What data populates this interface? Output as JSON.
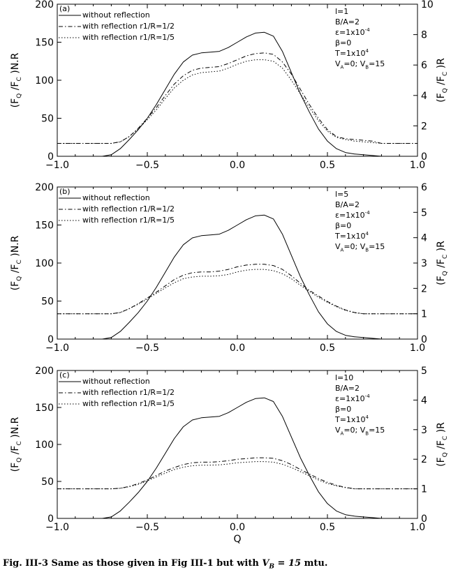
{
  "caption": {
    "prefix": "Fig. III-3 Same as those given in Fig III-1 but with ",
    "math": "V_B = 15",
    "suffix": " mtu."
  },
  "chart_data": [
    {
      "type": "line",
      "panel_label": "(a)",
      "xlabel": "",
      "ylabel_left": "(F_Q /F_C )N.R",
      "ylabel_right": "(F_Q /F_C )R",
      "xlim": [
        -1.0,
        1.0
      ],
      "ylim_left": [
        0,
        200
      ],
      "ylim_right": [
        0,
        10
      ],
      "x_ticks": [
        "-1.0",
        "-0.5",
        "0.0",
        "0.5",
        "1.0"
      ],
      "y_ticks_left": [
        "0",
        "50",
        "100",
        "150",
        "200"
      ],
      "y_ticks_right": [
        "0",
        "2",
        "4",
        "6",
        "8",
        "10"
      ],
      "legend": [
        "without reflection",
        "with reflection r1/R=1/2",
        "with reflection r1/R=1/5"
      ],
      "params": [
        "l=1",
        "B/A=2",
        "ε=1x10^-4",
        "β=0",
        "T=1x10^4",
        "V_A=0; V_B=15"
      ],
      "series": [
        {
          "name": "without reflection",
          "axis": "left",
          "style": "solid",
          "x": [
            -1.0,
            -0.75,
            -0.7,
            -0.65,
            -0.6,
            -0.55,
            -0.5,
            -0.45,
            -0.4,
            -0.35,
            -0.3,
            -0.25,
            -0.2,
            -0.15,
            -0.1,
            -0.05,
            0.0,
            0.05,
            0.1,
            0.15,
            0.2,
            0.25,
            0.3,
            0.35,
            0.4,
            0.45,
            0.5,
            0.55,
            0.6,
            0.65,
            0.7,
            0.75,
            0.8,
            1.0
          ],
          "y": [
            0,
            0,
            2,
            10,
            22,
            35,
            50,
            68,
            88,
            108,
            124,
            133,
            136,
            137,
            138,
            143,
            150,
            157,
            162,
            163,
            158,
            138,
            110,
            82,
            58,
            36,
            20,
            10,
            5,
            3,
            2,
            1,
            0,
            0
          ]
        },
        {
          "name": "with reflection r1/R=1/2",
          "axis": "right",
          "style": "dashdot",
          "x": [
            -1.0,
            -0.7,
            -0.65,
            -0.6,
            -0.55,
            -0.5,
            -0.45,
            -0.4,
            -0.35,
            -0.3,
            -0.25,
            -0.2,
            -0.15,
            -0.1,
            -0.05,
            0.0,
            0.05,
            0.1,
            0.15,
            0.2,
            0.25,
            0.3,
            0.35,
            0.4,
            0.45,
            0.5,
            0.55,
            0.6,
            0.65,
            0.7,
            0.75,
            0.8,
            1.0
          ],
          "y": [
            0.85,
            0.85,
            0.95,
            1.3,
            1.85,
            2.5,
            3.2,
            4.0,
            4.75,
            5.3,
            5.65,
            5.8,
            5.85,
            5.9,
            6.1,
            6.35,
            6.6,
            6.75,
            6.8,
            6.7,
            6.2,
            5.4,
            4.4,
            3.4,
            2.5,
            1.75,
            1.3,
            1.15,
            1.1,
            1.05,
            1.0,
            0.85,
            0.85
          ]
        },
        {
          "name": "with reflection r1/R=1/5",
          "axis": "right",
          "style": "dotted",
          "x": [
            -1.0,
            -0.7,
            -0.65,
            -0.6,
            -0.55,
            -0.5,
            -0.45,
            -0.4,
            -0.35,
            -0.3,
            -0.25,
            -0.2,
            -0.15,
            -0.1,
            -0.05,
            0.0,
            0.05,
            0.1,
            0.15,
            0.2,
            0.25,
            0.3,
            0.35,
            0.4,
            0.45,
            0.5,
            0.55,
            0.6,
            0.65,
            0.7,
            0.75,
            0.8,
            1.0
          ],
          "y": [
            0.85,
            0.85,
            0.95,
            1.3,
            1.8,
            2.4,
            3.05,
            3.8,
            4.5,
            5.0,
            5.35,
            5.5,
            5.55,
            5.6,
            5.8,
            6.05,
            6.25,
            6.35,
            6.35,
            6.25,
            5.8,
            5.0,
            4.1,
            3.2,
            2.35,
            1.65,
            1.25,
            1.1,
            1.0,
            0.95,
            0.9,
            0.85,
            0.85
          ]
        }
      ]
    },
    {
      "type": "line",
      "panel_label": "(b)",
      "xlabel": "",
      "ylabel_left": "(F_Q /F_C )N.R",
      "ylabel_right": "(F_Q /F_C )R",
      "xlim": [
        -1.0,
        1.0
      ],
      "ylim_left": [
        0,
        200
      ],
      "ylim_right": [
        0,
        6
      ],
      "x_ticks": [
        "-1.0",
        "-0.5",
        "0.0",
        "0.5",
        "1.0"
      ],
      "y_ticks_left": [
        "0",
        "50",
        "100",
        "150",
        "200"
      ],
      "y_ticks_right": [
        "0",
        "1",
        "2",
        "3",
        "4",
        "5",
        "6"
      ],
      "legend": [
        "without reflection",
        "with reflection r1/R=1/2",
        "with reflection r1/R=1/5"
      ],
      "params": [
        "l=5",
        "B/A=2",
        "ε=1x10^-4",
        "β=0",
        "T=1x10^4",
        "V_A=0; V_B=15"
      ],
      "series": [
        {
          "name": "without reflection",
          "axis": "left",
          "style": "solid",
          "x": [
            -1.0,
            -0.75,
            -0.7,
            -0.65,
            -0.6,
            -0.55,
            -0.5,
            -0.45,
            -0.4,
            -0.35,
            -0.3,
            -0.25,
            -0.2,
            -0.15,
            -0.1,
            -0.05,
            0.0,
            0.05,
            0.1,
            0.15,
            0.2,
            0.25,
            0.3,
            0.35,
            0.4,
            0.45,
            0.5,
            0.55,
            0.6,
            0.65,
            0.7,
            0.75,
            0.8,
            1.0
          ],
          "y": [
            0,
            0,
            2,
            10,
            22,
            35,
            50,
            68,
            88,
            108,
            124,
            133,
            136,
            137,
            138,
            143,
            150,
            157,
            162,
            163,
            158,
            138,
            110,
            82,
            58,
            36,
            20,
            10,
            5,
            3,
            2,
            1,
            0,
            0
          ]
        },
        {
          "name": "with reflection r1/R=1/2",
          "axis": "right",
          "style": "dashdot",
          "x": [
            -1.0,
            -0.7,
            -0.65,
            -0.6,
            -0.55,
            -0.5,
            -0.45,
            -0.4,
            -0.35,
            -0.3,
            -0.25,
            -0.2,
            -0.15,
            -0.1,
            -0.05,
            0.0,
            0.05,
            0.1,
            0.15,
            0.2,
            0.25,
            0.3,
            0.35,
            0.4,
            0.45,
            0.5,
            0.55,
            0.6,
            0.65,
            0.7,
            0.75,
            0.8,
            1.0
          ],
          "y": [
            1.0,
            1.0,
            1.05,
            1.2,
            1.4,
            1.62,
            1.85,
            2.1,
            2.35,
            2.52,
            2.62,
            2.65,
            2.65,
            2.68,
            2.75,
            2.85,
            2.92,
            2.95,
            2.95,
            2.9,
            2.75,
            2.5,
            2.2,
            1.92,
            1.7,
            1.48,
            1.3,
            1.15,
            1.05,
            1.0,
            1.0,
            1.0,
            1.0
          ]
        },
        {
          "name": "with reflection r1/R=1/5",
          "axis": "right",
          "style": "dotted",
          "x": [
            -1.0,
            -0.7,
            -0.65,
            -0.6,
            -0.55,
            -0.5,
            -0.45,
            -0.4,
            -0.35,
            -0.3,
            -0.25,
            -0.2,
            -0.15,
            -0.1,
            -0.05,
            0.0,
            0.05,
            0.1,
            0.15,
            0.2,
            0.25,
            0.3,
            0.35,
            0.4,
            0.45,
            0.5,
            0.55,
            0.6,
            0.65,
            0.7,
            0.75,
            0.8,
            1.0
          ],
          "y": [
            1.0,
            1.0,
            1.05,
            1.2,
            1.38,
            1.58,
            1.8,
            2.02,
            2.22,
            2.38,
            2.45,
            2.48,
            2.48,
            2.5,
            2.55,
            2.65,
            2.72,
            2.75,
            2.75,
            2.7,
            2.58,
            2.38,
            2.12,
            1.88,
            1.65,
            1.45,
            1.28,
            1.13,
            1.04,
            1.0,
            1.0,
            1.0,
            1.0
          ]
        }
      ]
    },
    {
      "type": "line",
      "panel_label": "(c)",
      "xlabel": "Q",
      "ylabel_left": "(F_Q /F_C )N.R",
      "ylabel_right": "(F_Q /F_C )R",
      "xlim": [
        -1.0,
        1.0
      ],
      "ylim_left": [
        0,
        200
      ],
      "ylim_right": [
        0,
        5
      ],
      "x_ticks": [
        "-1.0",
        "-0.5",
        "0.0",
        "0.5",
        "1.0"
      ],
      "y_ticks_left": [
        "0",
        "50",
        "100",
        "150",
        "200"
      ],
      "y_ticks_right": [
        "0",
        "1",
        "2",
        "3",
        "4",
        "5"
      ],
      "legend": [
        "without reflection",
        "with reflection r1/R=1/2",
        "with reflection r1/R=1/5"
      ],
      "params": [
        "l=10",
        "B/A=2",
        "ε=1x10^-4",
        "β=0",
        "T=1x10^4",
        "V_A=0; V_B=15"
      ],
      "series": [
        {
          "name": "without reflection",
          "axis": "left",
          "style": "solid",
          "x": [
            -1.0,
            -0.75,
            -0.7,
            -0.65,
            -0.6,
            -0.55,
            -0.5,
            -0.45,
            -0.4,
            -0.35,
            -0.3,
            -0.25,
            -0.2,
            -0.15,
            -0.1,
            -0.05,
            0.0,
            0.05,
            0.1,
            0.15,
            0.2,
            0.25,
            0.3,
            0.35,
            0.4,
            0.45,
            0.5,
            0.55,
            0.6,
            0.65,
            0.7,
            0.75,
            0.8,
            1.0
          ],
          "y": [
            0,
            0,
            2,
            10,
            22,
            35,
            50,
            68,
            88,
            108,
            124,
            133,
            136,
            137,
            138,
            143,
            150,
            157,
            162,
            163,
            158,
            138,
            110,
            82,
            58,
            36,
            20,
            10,
            5,
            3,
            2,
            1,
            0,
            0
          ]
        },
        {
          "name": "with reflection r1/R=1/2",
          "axis": "right",
          "style": "dashdot",
          "x": [
            -1.0,
            -0.7,
            -0.65,
            -0.6,
            -0.55,
            -0.5,
            -0.45,
            -0.4,
            -0.35,
            -0.3,
            -0.25,
            -0.2,
            -0.15,
            -0.1,
            -0.05,
            0.0,
            0.05,
            0.1,
            0.15,
            0.2,
            0.25,
            0.3,
            0.35,
            0.4,
            0.45,
            0.5,
            0.55,
            0.6,
            0.65,
            0.7,
            0.75,
            0.8,
            1.0
          ],
          "y": [
            1.0,
            1.0,
            1.02,
            1.08,
            1.18,
            1.3,
            1.45,
            1.6,
            1.72,
            1.82,
            1.88,
            1.9,
            1.9,
            1.92,
            1.95,
            2.0,
            2.02,
            2.05,
            2.05,
            2.03,
            1.95,
            1.82,
            1.65,
            1.5,
            1.35,
            1.22,
            1.12,
            1.05,
            1.0,
            1.0,
            1.0,
            1.0,
            1.0
          ]
        },
        {
          "name": "with reflection r1/R=1/5",
          "axis": "right",
          "style": "dotted",
          "x": [
            -1.0,
            -0.7,
            -0.65,
            -0.6,
            -0.55,
            -0.5,
            -0.45,
            -0.4,
            -0.35,
            -0.3,
            -0.25,
            -0.2,
            -0.15,
            -0.1,
            -0.05,
            0.0,
            0.05,
            0.1,
            0.15,
            0.2,
            0.25,
            0.3,
            0.35,
            0.4,
            0.45,
            0.5,
            0.55,
            0.6,
            0.65,
            0.7,
            0.75,
            0.8,
            1.0
          ],
          "y": [
            1.0,
            1.0,
            1.02,
            1.07,
            1.15,
            1.27,
            1.4,
            1.53,
            1.65,
            1.73,
            1.78,
            1.8,
            1.8,
            1.81,
            1.84,
            1.88,
            1.9,
            1.92,
            1.92,
            1.9,
            1.83,
            1.72,
            1.58,
            1.44,
            1.3,
            1.18,
            1.1,
            1.04,
            1.0,
            1.0,
            1.0,
            1.0,
            1.0
          ]
        }
      ]
    }
  ]
}
